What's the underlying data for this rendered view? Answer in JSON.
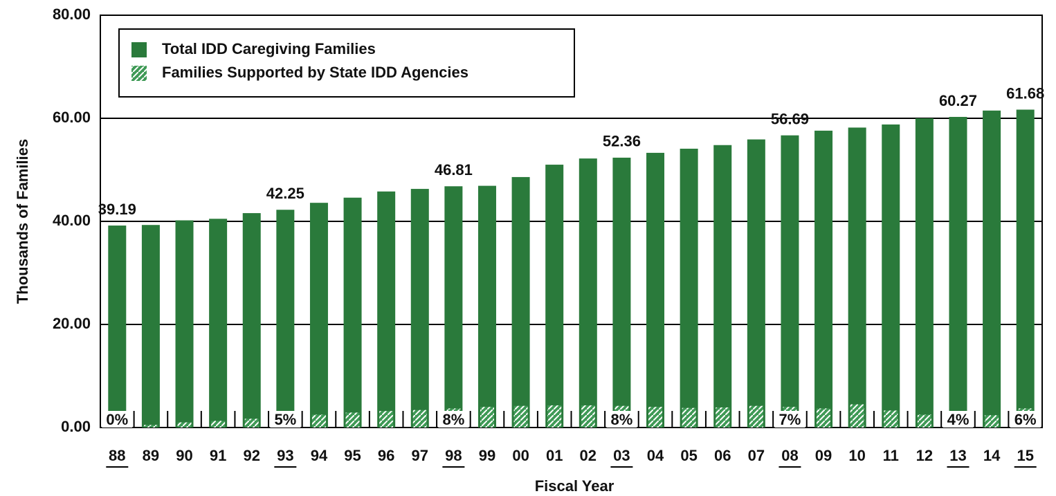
{
  "chart_data": {
    "type": "bar",
    "y_axis_label": "Thousands of Families",
    "x_axis_label": "Fiscal Year",
    "categories": [
      "88",
      "89",
      "90",
      "91",
      "92",
      "93",
      "94",
      "95",
      "96",
      "97",
      "98",
      "99",
      "00",
      "01",
      "02",
      "03",
      "04",
      "05",
      "06",
      "07",
      "08",
      "09",
      "10",
      "11",
      "12",
      "13",
      "14",
      "15"
    ],
    "series": [
      {
        "name": "Total IDD Caregiving Families",
        "color": "#2a7a3b",
        "values": [
          39.19,
          39.3,
          40.2,
          40.5,
          41.6,
          42.25,
          43.6,
          44.6,
          45.8,
          46.3,
          46.81,
          46.9,
          48.6,
          51.0,
          52.2,
          52.36,
          53.3,
          54.1,
          54.8,
          55.9,
          56.69,
          57.6,
          58.2,
          58.8,
          60.0,
          60.27,
          61.5,
          61.68
        ],
        "value_labels": [
          "39.19",
          null,
          null,
          null,
          null,
          "42.25",
          null,
          null,
          null,
          null,
          "46.81",
          null,
          null,
          null,
          null,
          "52.36",
          null,
          null,
          null,
          null,
          "56.69",
          null,
          null,
          null,
          null,
          "60.27",
          null,
          "61.68"
        ]
      },
      {
        "name": "Families Supported by State IDD Agencies",
        "color": "#3f9a56",
        "pattern": "hatch",
        "values": [
          0,
          0.5,
          1.0,
          1.3,
          1.7,
          2.1,
          2.5,
          2.9,
          3.2,
          3.4,
          3.7,
          4.0,
          4.2,
          4.3,
          4.3,
          4.2,
          4.0,
          3.8,
          3.9,
          4.2,
          4.0,
          3.7,
          4.5,
          3.3,
          2.5,
          2.4,
          2.4,
          3.7
        ],
        "percent_labels": [
          "0%",
          null,
          null,
          null,
          null,
          "5%",
          null,
          null,
          null,
          null,
          "8%",
          null,
          null,
          null,
          null,
          "8%",
          null,
          null,
          null,
          null,
          "7%",
          null,
          null,
          null,
          null,
          "4%",
          null,
          "6%"
        ]
      }
    ],
    "ylim": [
      0,
      80
    ],
    "yticks": [
      {
        "value": 0,
        "label": "0.00"
      },
      {
        "value": 20,
        "label": "20.00"
      },
      {
        "value": 40,
        "label": "40.00"
      },
      {
        "value": 60,
        "label": "60.00"
      },
      {
        "value": 80,
        "label": "80.00"
      }
    ],
    "grid": true,
    "legend": "top-left"
  }
}
